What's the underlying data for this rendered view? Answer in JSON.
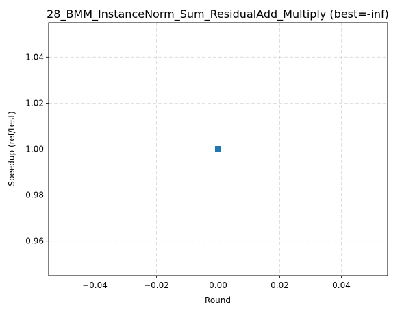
{
  "chart_data": {
    "type": "scatter",
    "title": "28_BMM_InstanceNorm_Sum_ResidualAdd_Multiply (best=-inf)",
    "xlabel": "Round",
    "ylabel": "Speedup (ref/test)",
    "xlim": [
      -0.055,
      0.055
    ],
    "ylim": [
      0.945,
      1.055
    ],
    "x_ticks": [
      -0.04,
      -0.02,
      0.0,
      0.02,
      0.04
    ],
    "x_tick_labels": [
      "−0.04",
      "−0.02",
      "0.00",
      "0.02",
      "0.04"
    ],
    "y_ticks": [
      0.96,
      0.98,
      1.0,
      1.02,
      1.04
    ],
    "y_tick_labels": [
      "0.96",
      "0.98",
      "1.00",
      "1.02",
      "1.04"
    ],
    "grid": true,
    "marker": "square",
    "series": [
      {
        "x": [
          0.0
        ],
        "y": [
          1.0
        ],
        "color": "#1f77b4"
      }
    ]
  }
}
